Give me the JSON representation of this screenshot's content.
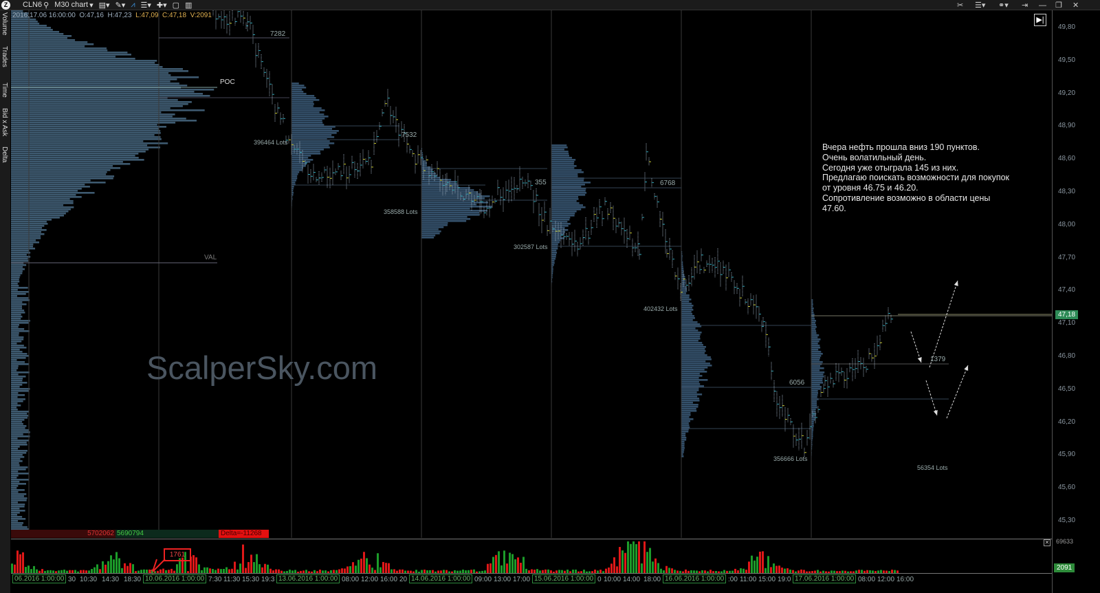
{
  "toolbar": {
    "logo_icon": "app-logo-icon",
    "symbol": "CLN6",
    "timeframe": "M30 chart",
    "tools": [
      "monitor-icon",
      "pencil-icon",
      "line-chart-icon",
      "bars-icon",
      "crosshair-icon",
      "window-icon",
      "layout-icon"
    ],
    "right_tools": [
      "tools-icon",
      "list-icon",
      "link-icon",
      "pin-icon",
      "minimize-icon",
      "restore-icon",
      "close-icon"
    ]
  },
  "left_tabs": [
    "Volume",
    "Trades",
    "Time",
    "Bid x Ask",
    "Delta"
  ],
  "info": {
    "datetime": "2016.17.06 16:00:00",
    "open": "O:47,16",
    "high": "H:47,23",
    "low": "L:47,09",
    "close": "C:47,18",
    "volume": "V:2091"
  },
  "price_axis": {
    "labels": [
      "49,80",
      "49,50",
      "49,20",
      "48,90",
      "48,60",
      "48,30",
      "48,00",
      "47,70",
      "47,40",
      "47,10",
      "46,80",
      "46,50",
      "46,20",
      "45,90",
      "45,60",
      "45,30"
    ],
    "current_price": "47,18",
    "accent": "#2e8b57"
  },
  "chart_labels": {
    "l1": "7282",
    "poc": "POC",
    "l2": "396464 Lots",
    "l3": "7532",
    "l4": "358588 Lots",
    "l5": "355",
    "l6": "302587 Lots",
    "l7": "6768",
    "val": "VAL",
    "l8": "402432 Lots",
    "l9": "6056",
    "l10": "1379",
    "l11": "356666 Lots",
    "l12": "56354 Lots"
  },
  "note": "Вчера нефть прошла вниз 190 пунктов.\nОчень волатильный день.\nСегодня уже отыграла 145 из них.\nПредлагаю поискать возможности для покупок от уровня 46.75 и 46.20.\nСопротивление возможно в области цены 47.60.",
  "watermark": "ScalperSky.com",
  "delta": {
    "sell": "5702062",
    "buy": "5690794",
    "delta": "Delta=-11268"
  },
  "volume_pane": {
    "max": "69633",
    "current": "2091",
    "marker": "1761"
  },
  "time_axis": [
    "06.2016 1:00:00",
    "30",
    "10:30",
    "14:30",
    "18:30",
    "10.06.2016 1:00:00",
    "7:30",
    "11:30",
    "15:30",
    "19:3",
    "13.06.2016 1:00:00",
    "08:00",
    "12:00",
    "16:00",
    "20",
    "14.06.2016 1:00:00",
    "09:00",
    "13:00",
    "17:00",
    "15.06.2016 1:00:00",
    "0",
    "10:00",
    "14:00",
    "18:00",
    "16.06.2016 1:00:00",
    ":00",
    "11:00",
    "15:00",
    "19:0",
    "17.06.2016 1:00:00",
    "08:00",
    "12:00",
    "16:00"
  ]
}
